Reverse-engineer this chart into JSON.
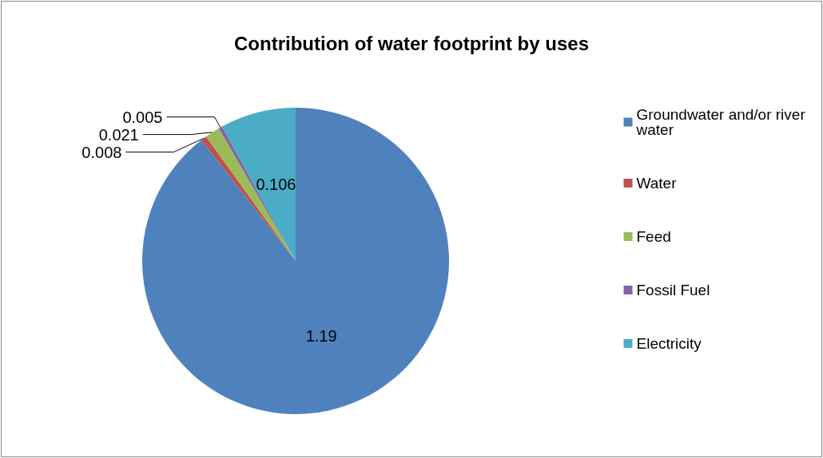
{
  "chart_data": {
    "type": "pie",
    "title": "Contribution of water footprint by uses",
    "categories": [
      "Groundwater and/or river water",
      "Water",
      "Feed",
      "Fossil Fuel",
      "Electricity"
    ],
    "values": [
      1.19,
      0.008,
      0.021,
      0.005,
      0.106
    ],
    "colors": [
      "#4f81bd",
      "#c0504d",
      "#9bbb59",
      "#8064a2",
      "#4bacc6"
    ],
    "data_labels": true,
    "legend": "right"
  }
}
